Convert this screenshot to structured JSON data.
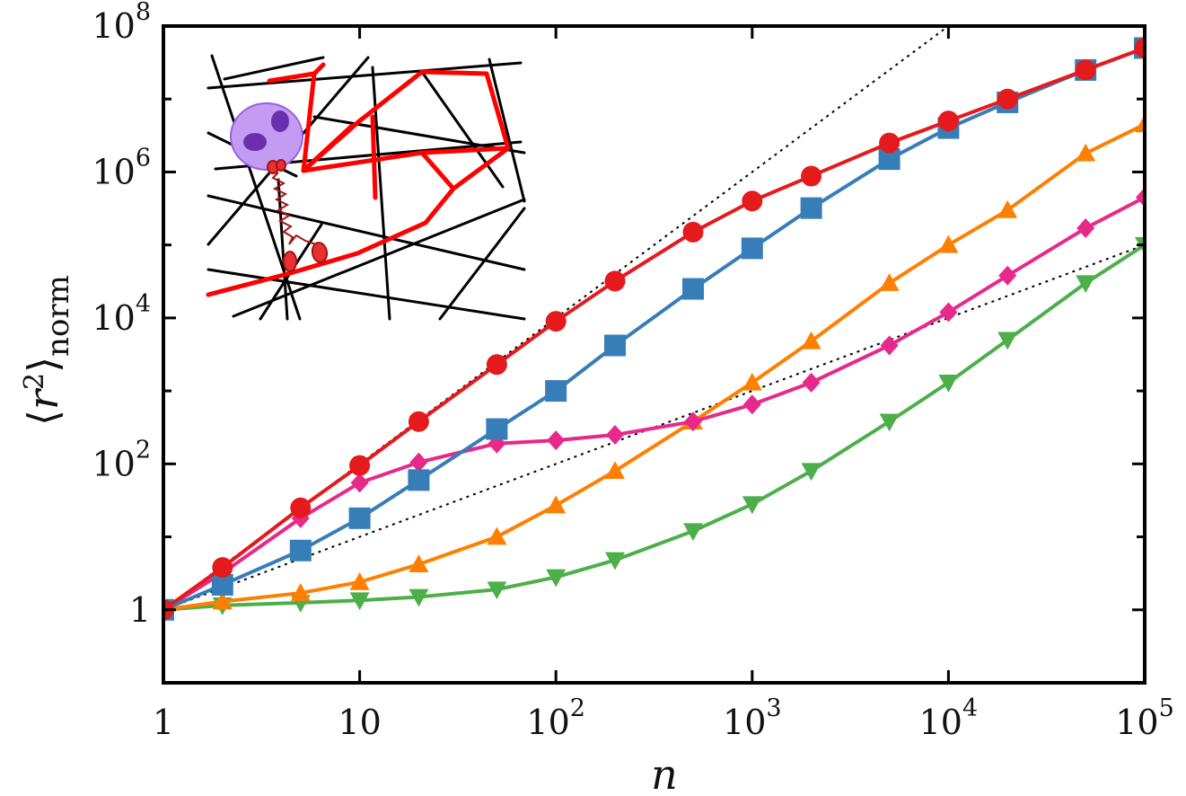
{
  "chart_data": {
    "type": "line",
    "xscale": "log",
    "yscale": "log",
    "xlim": [
      1,
      100000
    ],
    "ylim": [
      0.1,
      100000000
    ],
    "xlabel": "n",
    "ylabel": "⟨r²⟩norm",
    "grid": false,
    "legend": "none",
    "x_ticks": [
      {
        "value": 1,
        "base": "1",
        "exp": ""
      },
      {
        "value": 10,
        "base": "10",
        "exp": ""
      },
      {
        "value": 100,
        "base": "10",
        "exp": "2"
      },
      {
        "value": 1000,
        "base": "10",
        "exp": "3"
      },
      {
        "value": 10000,
        "base": "10",
        "exp": "4"
      },
      {
        "value": 100000,
        "base": "10",
        "exp": "5"
      }
    ],
    "y_ticks": [
      {
        "value": 1,
        "base": "1",
        "exp": ""
      },
      {
        "value": 100,
        "base": "10",
        "exp": "2"
      },
      {
        "value": 10000,
        "base": "10",
        "exp": "4"
      },
      {
        "value": 1000000,
        "base": "10",
        "exp": "6"
      },
      {
        "value": 100000000,
        "base": "10",
        "exp": "8"
      }
    ],
    "y_minor_ticks": [
      0.1,
      10,
      1000,
      100000,
      10000000
    ],
    "x": [
      1,
      2,
      5,
      10,
      20,
      50,
      100,
      200,
      500,
      1000,
      2000,
      5000,
      10000,
      20000,
      50000,
      100000
    ],
    "series": [
      {
        "color": "#e41a1c",
        "marker": "circle",
        "values": [
          1,
          3.8,
          25,
          95,
          380,
          2300,
          9000,
          32000,
          150000,
          400000,
          880000,
          2500000,
          5000000,
          10000000,
          25000000,
          50000000
        ]
      },
      {
        "color": "#377eb8",
        "marker": "square",
        "values": [
          1,
          2.2,
          6.5,
          18,
          60,
          300,
          1000,
          4200,
          25000,
          90000,
          320000,
          1500000,
          4000000,
          9000000,
          25000000,
          50000000
        ]
      },
      {
        "color": "#ff7f00",
        "marker": "triangle-up",
        "values": [
          1,
          1.3,
          1.7,
          2.4,
          4.2,
          10,
          27,
          80,
          380,
          1300,
          4800,
          30000,
          100000,
          300000,
          1800000,
          4500000
        ]
      },
      {
        "color": "#e7298a",
        "marker": "diamond",
        "values": [
          1,
          3.2,
          18,
          55,
          105,
          190,
          210,
          250,
          380,
          650,
          1300,
          4200,
          12000,
          38000,
          170000,
          450000
        ]
      },
      {
        "color": "#4daf4a",
        "marker": "triangle-down",
        "values": [
          1,
          1.15,
          1.25,
          1.35,
          1.5,
          1.9,
          2.8,
          4.8,
          12,
          28,
          80,
          380,
          1300,
          5000,
          30000,
          100000
        ]
      }
    ],
    "reference_lines": [
      {
        "style": "dotted",
        "color": "#000000",
        "x": [
          1,
          10000
        ],
        "y": [
          1,
          100000000
        ]
      },
      {
        "style": "dotted",
        "color": "#000000",
        "x": [
          1,
          100000
        ],
        "y": [
          1,
          100000
        ]
      }
    ]
  }
}
